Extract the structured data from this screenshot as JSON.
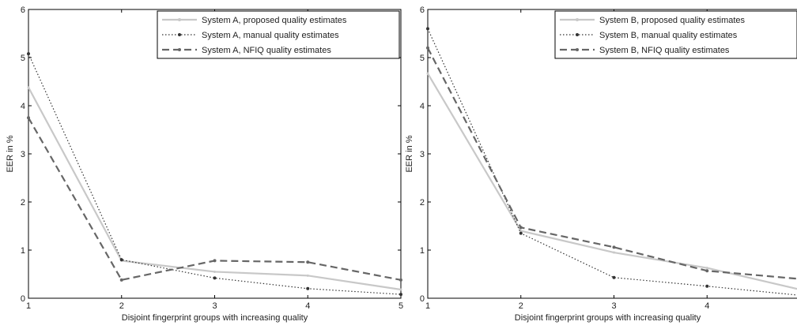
{
  "chart_data": [
    {
      "type": "line",
      "title": "",
      "xlabel": "Disjoint fingerprint groups with increasing quality",
      "ylabel": "EER in %",
      "x": [
        1,
        2,
        3,
        4,
        5
      ],
      "xlim": [
        1,
        5
      ],
      "ylim": [
        0,
        6
      ],
      "xticks": [
        "1",
        "2",
        "3",
        "4",
        "5"
      ],
      "yticks": [
        "0",
        "1",
        "2",
        "3",
        "4",
        "5",
        "6"
      ],
      "grid": false,
      "legend_position": "top-right",
      "series": [
        {
          "name": "System A, proposed quality estimates",
          "values": [
            4.38,
            0.78,
            0.55,
            0.47,
            0.18
          ],
          "color": "#c8c8c8",
          "style": "solid"
        },
        {
          "name": "System A, manual quality estimates",
          "values": [
            5.08,
            0.8,
            0.42,
            0.2,
            0.08
          ],
          "color": "#333333",
          "style": "dotted"
        },
        {
          "name": "System A, NFIQ quality estimates",
          "values": [
            3.75,
            0.38,
            0.78,
            0.75,
            0.38
          ],
          "color": "#666666",
          "style": "dashed"
        }
      ]
    },
    {
      "type": "line",
      "title": "",
      "xlabel": "Disjoint fingerprint groups with increasing quality",
      "ylabel": "EER in %",
      "x": [
        1,
        2,
        3,
        4,
        5
      ],
      "xlim": [
        1,
        5
      ],
      "ylim": [
        0,
        6
      ],
      "xticks": [
        "1",
        "2",
        "3",
        "4",
        ""
      ],
      "yticks": [
        "0",
        "1",
        "2",
        "3",
        "4",
        "5",
        "6"
      ],
      "grid": false,
      "legend_position": "top-right",
      "series": [
        {
          "name": "System B, proposed quality estimates",
          "values": [
            4.67,
            1.4,
            0.95,
            0.63,
            0.18
          ],
          "color": "#c8c8c8",
          "style": "solid"
        },
        {
          "name": "System B, manual quality estimates",
          "values": [
            5.6,
            1.35,
            0.43,
            0.25,
            0.06
          ],
          "color": "#333333",
          "style": "dotted"
        },
        {
          "name": "System B, NFIQ quality estimates",
          "values": [
            5.2,
            1.47,
            1.06,
            0.57,
            0.4
          ],
          "color": "#666666",
          "style": "dashed"
        }
      ]
    }
  ]
}
